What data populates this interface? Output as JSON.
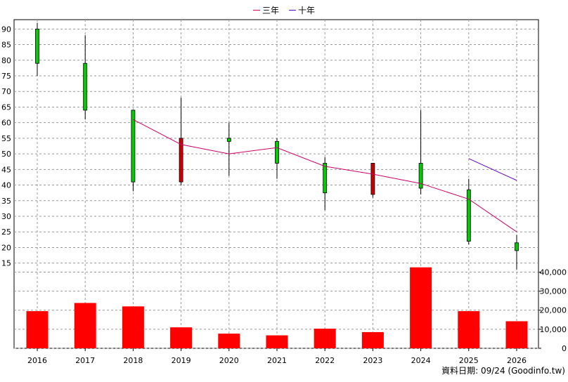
{
  "chart_data": [
    {
      "type": "candlestick",
      "categories": [
        "2016",
        "2017",
        "2018",
        "2019",
        "2020",
        "2021",
        "2022",
        "2023",
        "2024",
        "2025",
        "2026"
      ],
      "candles": [
        {
          "open": 79,
          "close": 90,
          "high": 92,
          "low": 75,
          "color": "#00cc00"
        },
        {
          "open": 64,
          "close": 79,
          "high": 88,
          "low": 61,
          "color": "#00cc00"
        },
        {
          "open": 41,
          "close": 64,
          "high": 64,
          "low": 38,
          "color": "#00cc00"
        },
        {
          "open": 55,
          "close": 41,
          "high": 68,
          "low": 40,
          "color": "#cc0000"
        },
        {
          "open": 54,
          "close": 55,
          "high": 60,
          "low": 43,
          "color": "#00cc00"
        },
        {
          "open": 47,
          "close": 54,
          "high": 55,
          "low": 42,
          "color": "#00cc00"
        },
        {
          "open": 37.5,
          "close": 47,
          "high": 49,
          "low": 32,
          "color": "#00cc00"
        },
        {
          "open": 47,
          "close": 37,
          "high": 47,
          "low": 36,
          "color": "#cc0000"
        },
        {
          "open": 39,
          "close": 47,
          "high": 64,
          "low": 37,
          "color": "#00cc00"
        },
        {
          "open": 22,
          "close": 38.5,
          "high": 42,
          "low": 21,
          "color": "#00cc00"
        },
        {
          "open": 19,
          "close": 21.5,
          "high": 24,
          "low": 13,
          "color": "#00cc00"
        }
      ],
      "series": [
        {
          "name": "三年",
          "color": "#cc0066",
          "values": [
            null,
            null,
            61,
            53,
            50,
            52,
            46,
            43.5,
            40.5,
            35.5,
            25
          ]
        },
        {
          "name": "十年",
          "color": "#6600cc",
          "values": [
            null,
            null,
            null,
            null,
            null,
            null,
            null,
            null,
            null,
            48.5,
            41.5
          ]
        }
      ],
      "yticks": [
        15,
        20,
        25,
        30,
        35,
        40,
        45,
        50,
        55,
        60,
        65,
        70,
        75,
        80,
        85,
        90
      ],
      "ylim": [
        12,
        93
      ],
      "grid": true,
      "legend": "top-center"
    },
    {
      "type": "bar",
      "categories": [
        "2016",
        "2017",
        "2018",
        "2019",
        "2020",
        "2021",
        "2022",
        "2023",
        "2024",
        "2025",
        "2026"
      ],
      "values": [
        19500,
        23800,
        22000,
        11000,
        7700,
        6800,
        10300,
        8500,
        42500,
        19500,
        14200
      ],
      "color": "#ff0000",
      "yticks": [
        "0",
        "10,000",
        "20,000",
        "30,000",
        "40,000"
      ],
      "ytick_values": [
        0,
        10000,
        20000,
        30000,
        40000
      ],
      "ylim": [
        0,
        43500
      ],
      "grid": true
    }
  ],
  "footer": "資料日期: 09/24 (Goodinfo.tw)"
}
